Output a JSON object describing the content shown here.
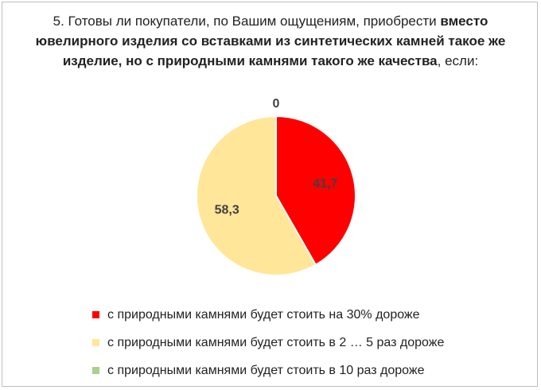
{
  "title": {
    "part1": "5. Готовы ли покупатели, по Вашим ощущениям, приобрести ",
    "bold": "вместо ювелирного изделия со вставками из синтетических камней такое же изделие, но с природными камнями такого же качества",
    "part2": ", если:"
  },
  "chart_data": {
    "type": "pie",
    "title": "5. Готовы ли покупатели, по Вашим ощущениям, приобрести вместо ювелирного изделия со вставками из синтетических камней такое же изделие, но с природными камнями такого же качества, если:",
    "slices": [
      {
        "label": "с природными камнями будет стоить на 30% дороже",
        "value": 41.7,
        "display": "41,7",
        "color": "#ff0000"
      },
      {
        "label": "с природными камнями будет стоить в 2 … 5 раз дороже",
        "value": 58.3,
        "display": "58,3",
        "color": "#ffe699"
      },
      {
        "label": "с природными камнями будет стоить в 10 раз дороже",
        "value": 0,
        "display": "0",
        "color": "#a9d18e"
      }
    ],
    "legend_position": "bottom",
    "data_labels": true
  }
}
